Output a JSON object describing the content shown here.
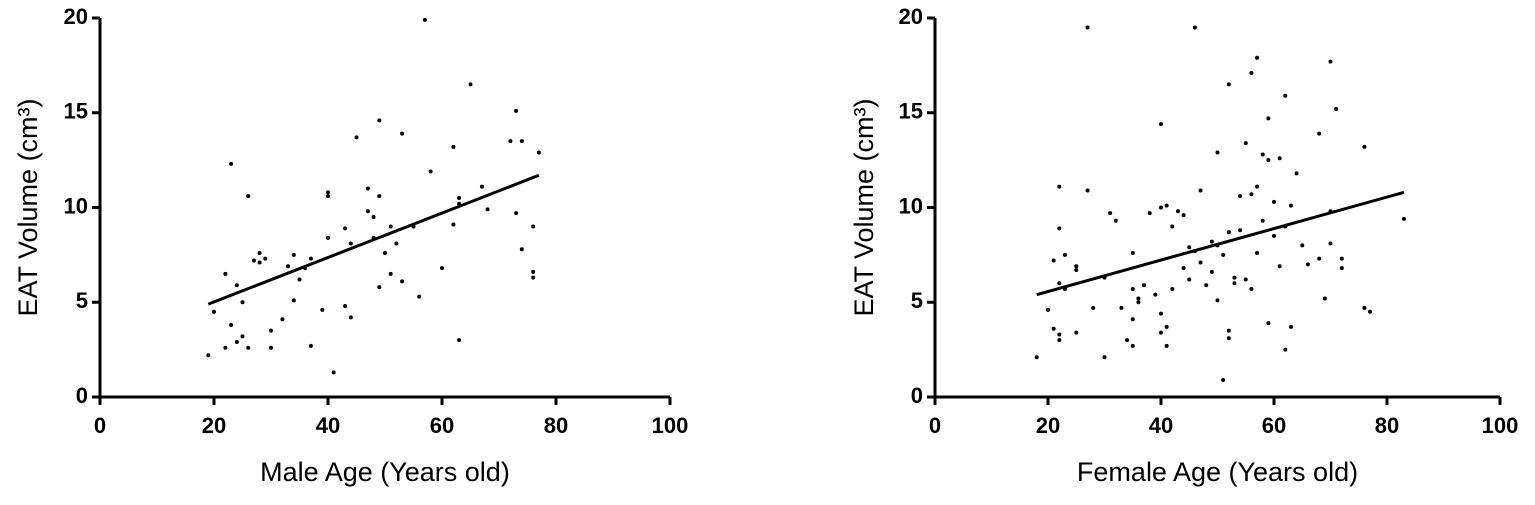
{
  "chart_data": [
    {
      "type": "scatter",
      "xlabel": "Male Age (Years old)",
      "ylabel": "EAT Volume (cm³)",
      "color": "#000000",
      "xlim": [
        0,
        100
      ],
      "xticks": [
        0,
        20,
        40,
        60,
        80,
        100
      ],
      "ylim": [
        0,
        20
      ],
      "yticks": [
        0,
        5,
        10,
        15,
        20
      ],
      "x": [
        19,
        20,
        22,
        22,
        23,
        23,
        24,
        24,
        25,
        25,
        26,
        26,
        27,
        28,
        28,
        29,
        30,
        30,
        32,
        33,
        34,
        34,
        35,
        36,
        37,
        37,
        39,
        40,
        40,
        40,
        41,
        43,
        43,
        44,
        44,
        45,
        47,
        47,
        48,
        48,
        49,
        49,
        49,
        50,
        51,
        51,
        52,
        53,
        53,
        55,
        56,
        57,
        58,
        60,
        62,
        62,
        63,
        63,
        63,
        65,
        67,
        68,
        72,
        73,
        73,
        74,
        74,
        76,
        76,
        76,
        77
      ],
      "values": [
        2.2,
        4.5,
        2.6,
        6.5,
        12.3,
        3.8,
        2.9,
        5.9,
        3.2,
        5.0,
        10.6,
        2.6,
        7.2,
        7.6,
        7.1,
        7.3,
        3.5,
        2.6,
        4.1,
        6.9,
        7.5,
        5.1,
        6.2,
        6.8,
        2.7,
        7.3,
        4.6,
        10.8,
        10.6,
        8.4,
        1.3,
        8.9,
        4.8,
        4.2,
        8.1,
        13.7,
        11.0,
        9.8,
        8.4,
        9.5,
        10.6,
        5.8,
        14.6,
        7.6,
        6.5,
        9.0,
        8.1,
        13.9,
        6.1,
        9.0,
        5.3,
        19.9,
        11.9,
        6.8,
        13.2,
        9.1,
        10.5,
        10.2,
        3.0,
        16.5,
        11.1,
        9.9,
        13.5,
        15.1,
        9.7,
        13.5,
        7.8,
        9.0,
        6.6,
        6.3,
        12.9
      ],
      "trendline": {
        "x": [
          19,
          77
        ],
        "values": [
          4.9,
          11.7
        ]
      }
    },
    {
      "type": "scatter",
      "xlabel": "Female Age (Years old)",
      "ylabel": "EAT Volume (cm³)",
      "color": "#000000",
      "xlim": [
        0,
        100
      ],
      "xticks": [
        0,
        20,
        40,
        60,
        80,
        100
      ],
      "ylim": [
        0,
        20
      ],
      "yticks": [
        0,
        5,
        10,
        15,
        20
      ],
      "x": [
        18,
        20,
        21,
        21,
        22,
        22,
        22,
        22,
        22,
        23,
        23,
        25,
        25,
        25,
        27,
        27,
        28,
        30,
        30,
        31,
        32,
        33,
        34,
        35,
        35,
        35,
        35,
        36,
        36,
        37,
        38,
        39,
        40,
        40,
        40,
        40,
        41,
        41,
        41,
        42,
        42,
        43,
        44,
        44,
        45,
        45,
        46,
        46,
        47,
        47,
        48,
        49,
        49,
        50,
        50,
        50,
        51,
        51,
        52,
        52,
        52,
        52,
        53,
        53,
        54,
        54,
        55,
        55,
        56,
        56,
        56,
        57,
        57,
        57,
        58,
        58,
        59,
        59,
        59,
        60,
        60,
        61,
        61,
        62,
        62,
        62,
        63,
        63,
        64,
        65,
        66,
        68,
        68,
        69,
        70,
        70,
        70,
        71,
        72,
        72,
        76,
        76,
        77,
        83
      ],
      "values": [
        2.1,
        4.6,
        7.2,
        3.6,
        11.1,
        8.9,
        6.0,
        3.3,
        3.0,
        7.5,
        5.7,
        6.9,
        6.7,
        3.4,
        19.5,
        10.9,
        4.7,
        2.1,
        6.3,
        9.7,
        9.3,
        4.7,
        3.0,
        7.6,
        5.7,
        4.1,
        2.7,
        5.2,
        5.0,
        5.9,
        9.7,
        5.4,
        14.4,
        10.0,
        4.4,
        3.4,
        10.1,
        2.7,
        3.7,
        9.0,
        5.7,
        9.8,
        9.6,
        6.8,
        7.9,
        6.2,
        19.5,
        7.7,
        10.9,
        7.1,
        5.9,
        8.2,
        6.6,
        12.9,
        8.0,
        5.1,
        7.5,
        0.9,
        16.5,
        8.7,
        3.5,
        3.1,
        6.3,
        6.0,
        10.6,
        8.8,
        13.4,
        6.2,
        17.1,
        10.7,
        5.7,
        17.9,
        11.1,
        7.6,
        12.8,
        9.3,
        14.7,
        12.5,
        3.9,
        10.3,
        8.5,
        12.6,
        6.9,
        15.9,
        9.0,
        2.5,
        3.7,
        10.1,
        11.8,
        8.0,
        7.0,
        13.9,
        7.3,
        5.2,
        17.7,
        9.8,
        8.1,
        15.2,
        7.3,
        6.8,
        13.2,
        4.7,
        4.5,
        9.4
      ],
      "trendline": {
        "x": [
          18,
          83
        ],
        "values": [
          5.4,
          10.8
        ]
      }
    }
  ]
}
